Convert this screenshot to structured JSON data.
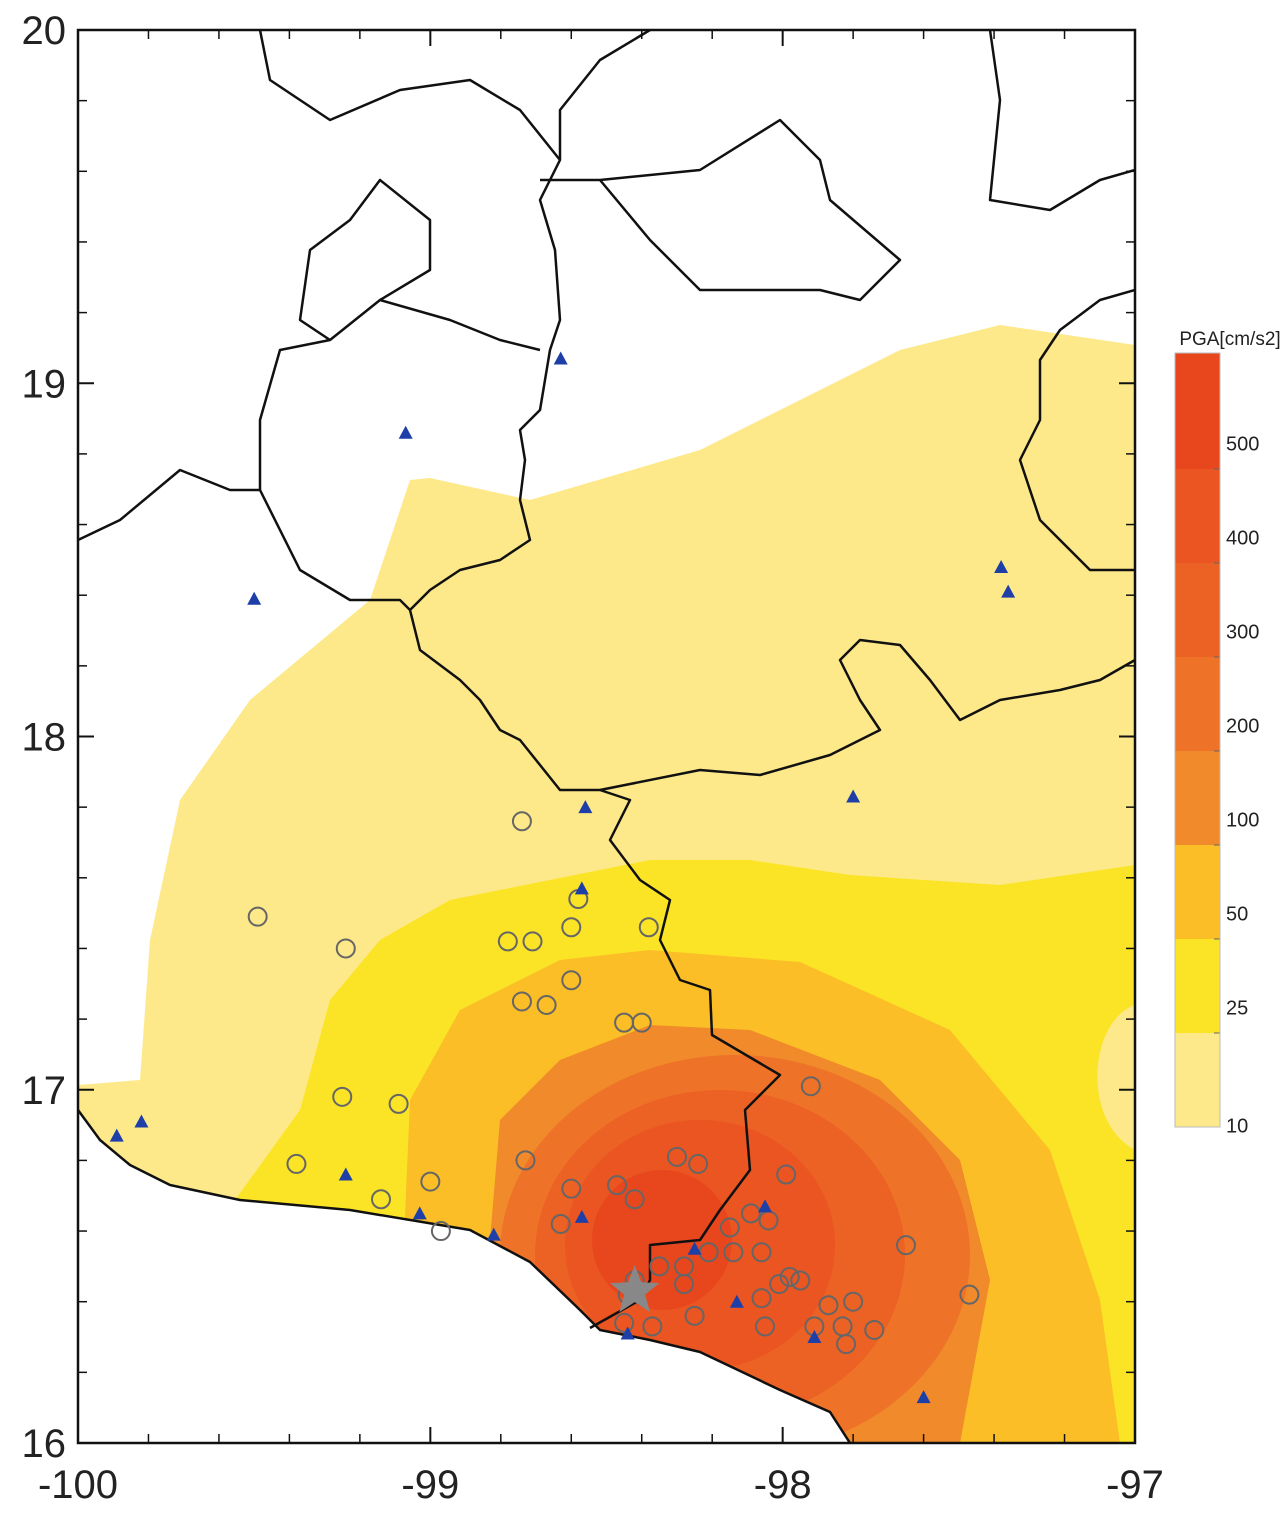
{
  "chart_data": {
    "type": "map",
    "xlim": [
      -100,
      -97
    ],
    "ylim": [
      16,
      20
    ],
    "xticks": [
      -100,
      -99,
      -98,
      -97
    ],
    "yticks": [
      16,
      17,
      18,
      19,
      20
    ],
    "colorbar": {
      "title": "PGA[cm/s2]",
      "levels": [
        10,
        25,
        50,
        100,
        200,
        300,
        400,
        500
      ],
      "colors": [
        "#fde98a",
        "#fbe426",
        "#fbbe26",
        "#f08a2a",
        "#ee7228",
        "#ec6124",
        "#ea5522",
        "#e8471e"
      ]
    },
    "stations": {
      "color": "#1f3fa8",
      "points": [
        [
          -98.63,
          19.07
        ],
        [
          -99.07,
          18.86
        ],
        [
          -99.5,
          18.39
        ],
        [
          -97.38,
          18.48
        ],
        [
          -97.36,
          18.41
        ],
        [
          -98.56,
          17.8
        ],
        [
          -97.8,
          17.83
        ],
        [
          -98.57,
          17.57
        ],
        [
          -99.82,
          16.91
        ],
        [
          -99.89,
          16.87
        ],
        [
          -99.24,
          16.76
        ],
        [
          -99.03,
          16.65
        ],
        [
          -98.82,
          16.59
        ],
        [
          -98.57,
          16.64
        ],
        [
          -98.05,
          16.67
        ],
        [
          -98.25,
          16.55
        ],
        [
          -98.13,
          16.4
        ],
        [
          -97.91,
          16.3
        ],
        [
          -98.44,
          16.31
        ],
        [
          -97.6,
          16.13
        ]
      ]
    },
    "observations": {
      "color": "#666666",
      "points": [
        [
          -98.74,
          17.76
        ],
        [
          -99.49,
          17.49
        ],
        [
          -99.24,
          17.4
        ],
        [
          -98.58,
          17.54
        ],
        [
          -98.6,
          17.46
        ],
        [
          -98.78,
          17.42
        ],
        [
          -98.71,
          17.42
        ],
        [
          -98.38,
          17.46
        ],
        [
          -98.6,
          17.31
        ],
        [
          -98.74,
          17.25
        ],
        [
          -98.67,
          17.24
        ],
        [
          -98.45,
          17.19
        ],
        [
          -98.4,
          17.19
        ],
        [
          -99.25,
          16.98
        ],
        [
          -99.09,
          16.96
        ],
        [
          -97.92,
          17.01
        ],
        [
          -99.38,
          16.79
        ],
        [
          -99.0,
          16.74
        ],
        [
          -99.14,
          16.69
        ],
        [
          -98.97,
          16.6
        ],
        [
          -98.73,
          16.8
        ],
        [
          -98.6,
          16.72
        ],
        [
          -98.47,
          16.73
        ],
        [
          -98.42,
          16.69
        ],
        [
          -98.3,
          16.81
        ],
        [
          -98.24,
          16.79
        ],
        [
          -98.63,
          16.62
        ],
        [
          -98.15,
          16.61
        ],
        [
          -98.09,
          16.65
        ],
        [
          -98.04,
          16.63
        ],
        [
          -97.99,
          16.76
        ],
        [
          -98.35,
          16.5
        ],
        [
          -98.28,
          16.5
        ],
        [
          -98.28,
          16.45
        ],
        [
          -98.21,
          16.54
        ],
        [
          -98.14,
          16.54
        ],
        [
          -98.06,
          16.54
        ],
        [
          -98.42,
          16.46
        ],
        [
          -98.44,
          16.42
        ],
        [
          -98.37,
          16.33
        ],
        [
          -98.25,
          16.36
        ],
        [
          -98.01,
          16.45
        ],
        [
          -97.98,
          16.47
        ],
        [
          -97.95,
          16.46
        ],
        [
          -98.06,
          16.41
        ],
        [
          -98.05,
          16.33
        ],
        [
          -97.87,
          16.39
        ],
        [
          -97.8,
          16.4
        ],
        [
          -97.91,
          16.33
        ],
        [
          -97.83,
          16.33
        ],
        [
          -97.82,
          16.28
        ],
        [
          -97.74,
          16.32
        ],
        [
          -97.65,
          16.56
        ],
        [
          -97.47,
          16.42
        ],
        [
          -98.45,
          16.34
        ]
      ]
    },
    "epicenter": {
      "color": "#888888",
      "point": [
        -98.42,
        16.43
      ]
    }
  }
}
